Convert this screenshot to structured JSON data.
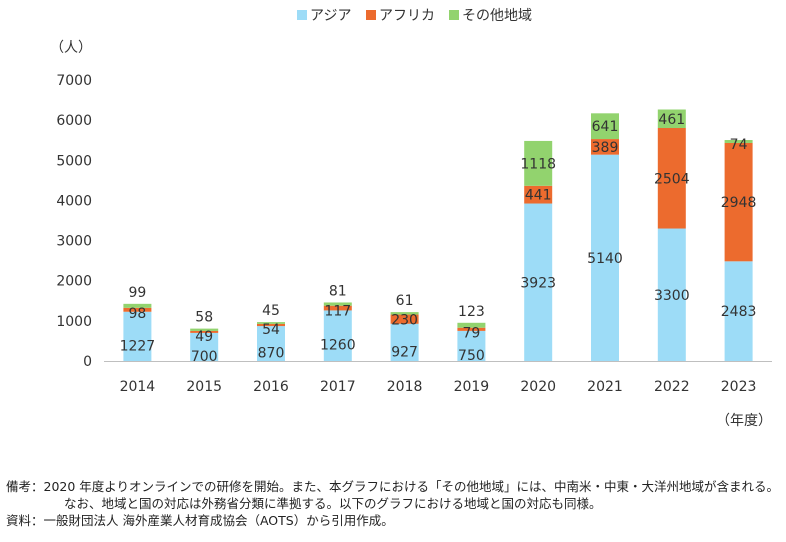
{
  "chart_data": {
    "type": "bar",
    "stacked": true,
    "categories": [
      "2014",
      "2015",
      "2016",
      "2017",
      "2018",
      "2019",
      "2020",
      "2021",
      "2022",
      "2023"
    ],
    "series": [
      {
        "name": "アジア",
        "color": "#9ddcf7",
        "values": [
          1227,
          700,
          870,
          1260,
          927,
          750,
          3923,
          5140,
          3300,
          2483
        ]
      },
      {
        "name": "アフリカ",
        "color": "#ec6b2e",
        "values": [
          98,
          49,
          54,
          117,
          230,
          79,
          441,
          389,
          2504,
          2948
        ]
      },
      {
        "name": "その他地域",
        "color": "#92d36e",
        "values": [
          99,
          58,
          45,
          81,
          61,
          123,
          1118,
          641,
          461,
          74
        ]
      }
    ],
    "ylabel": "（人）",
    "xlabel": "（年度）",
    "ylim": [
      0,
      7000
    ],
    "yticks": [
      0,
      1000,
      2000,
      3000,
      4000,
      5000,
      6000,
      7000
    ],
    "grid": false,
    "legend_position": "top-center"
  },
  "notes": {
    "line1": "備考：2020 年度よりオンラインでの研修を開始。また、本グラフにおける「その他地域」には、中南米・中東・大洋州地域が含まれる。",
    "line2": "なお、地域と国の対応は外務省分類に準拠する。以下のグラフにおける地域と国の対応も同様。",
    "line3": "資料：一般財団法人  海外産業人材育成協会（AOTS）から引用作成。"
  }
}
